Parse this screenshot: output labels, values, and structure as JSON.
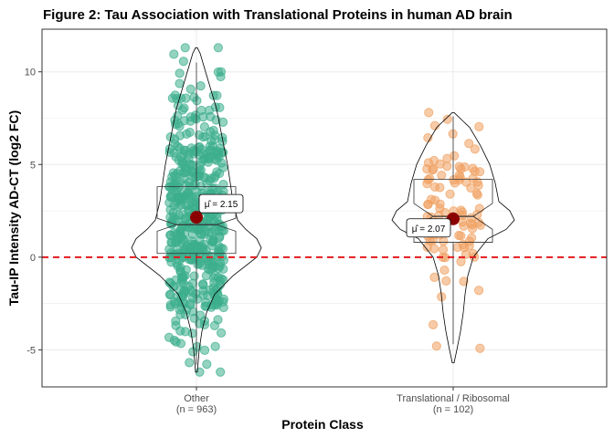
{
  "chart_data": {
    "type": "violin",
    "title": "Figure 2: Tau Association with Translational Proteins in human AD brain",
    "xlabel": "Protein Class",
    "ylabel": "Tau-IP Intensity AD-CT (log2 FC)",
    "ylim": [
      -7,
      12.3
    ],
    "yticks": [
      -5,
      0,
      5,
      10
    ],
    "reference_line": {
      "y": 0,
      "style": "dashed",
      "color": "#e31a1c"
    },
    "grid": true,
    "groups": [
      {
        "name": "Other",
        "n_label": "(n = 963)",
        "color": "#3cae8c",
        "mean": 2.15,
        "mean_label": "2.15",
        "min": -6.2,
        "max": 11.3,
        "box": {
          "q1": 0.2,
          "median": 1.75,
          "q3": 3.8,
          "notch_low": 1.4,
          "notch_high": 2.1
        },
        "whiskers": [
          -5.8,
          10.5
        ]
      },
      {
        "name": "Translational / Ribosomal",
        "n_label": "(n = 102)",
        "color": "#f0a060",
        "mean": 2.07,
        "mean_label": "2.07",
        "min": -5.7,
        "max": 7.8,
        "box": {
          "q1": 0.8,
          "median": 2.2,
          "q3": 4.2,
          "notch_low": 1.5,
          "notch_high": 2.9
        },
        "whiskers": [
          -4.7,
          7.6
        ]
      }
    ],
    "mean_symbol": "μ̂ ="
  },
  "colors": {
    "mean_point": "#8b0000",
    "reference": "#e31a1c",
    "grid": "#ebebeb"
  }
}
